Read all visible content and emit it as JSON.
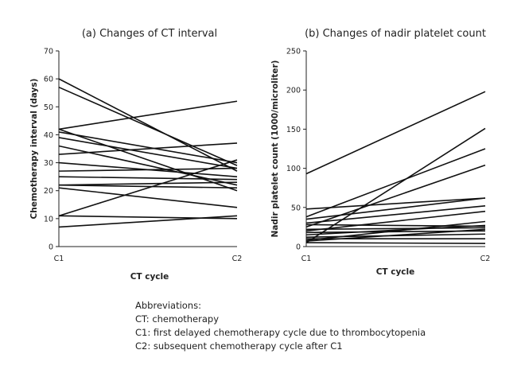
{
  "chart_data": [
    {
      "type": "line",
      "title": "(a) Changes of CT interval",
      "xlabel": "CT cycle",
      "ylabel": "Chemotherapy interval (days)",
      "categories": [
        "C1",
        "C2"
      ],
      "ylim": [
        0,
        70
      ],
      "yticks": [
        "0",
        "10",
        "20",
        "30",
        "40",
        "50",
        "60",
        "70"
      ],
      "series": [
        {
          "values": [
            60,
            27
          ]
        },
        {
          "values": [
            57,
            29
          ]
        },
        {
          "values": [
            42,
            52
          ]
        },
        {
          "values": [
            41,
            30
          ]
        },
        {
          "values": [
            42,
            20
          ]
        },
        {
          "values": [
            39,
            28
          ]
        },
        {
          "values": [
            36,
            22
          ]
        },
        {
          "values": [
            33,
            37
          ]
        },
        {
          "values": [
            30,
            25
          ]
        },
        {
          "values": [
            27,
            28
          ]
        },
        {
          "values": [
            25,
            24
          ]
        },
        {
          "values": [
            22,
            21
          ]
        },
        {
          "values": [
            22,
            23
          ]
        },
        {
          "values": [
            21,
            14
          ]
        },
        {
          "values": [
            11,
            31
          ]
        },
        {
          "values": [
            11,
            10
          ]
        },
        {
          "values": [
            7,
            11
          ]
        }
      ]
    },
    {
      "type": "line",
      "title": "(b) Changes of nadir platelet count",
      "xlabel": "CT cycle",
      "ylabel": "Nadir platelet count (1000/microliter)",
      "categories": [
        "C1",
        "C2"
      ],
      "ylim": [
        0,
        250
      ],
      "yticks": [
        "0",
        "50",
        "100",
        "150",
        "200",
        "250"
      ],
      "series": [
        {
          "values": [
            93,
            198
          ]
        },
        {
          "values": [
            5,
            151
          ]
        },
        {
          "values": [
            38,
            125
          ]
        },
        {
          "values": [
            25,
            104
          ]
        },
        {
          "values": [
            48,
            62
          ]
        },
        {
          "values": [
            35,
            62
          ]
        },
        {
          "values": [
            30,
            52
          ]
        },
        {
          "values": [
            20,
            45
          ]
        },
        {
          "values": [
            8,
            32
          ]
        },
        {
          "values": [
            15,
            27
          ]
        },
        {
          "values": [
            22,
            24
          ]
        },
        {
          "values": [
            18,
            20
          ]
        },
        {
          "values": [
            12,
            16
          ]
        },
        {
          "values": [
            7,
            22
          ]
        },
        {
          "values": [
            10,
            10
          ]
        },
        {
          "values": [
            5,
            4
          ]
        },
        {
          "values": [
            28,
            26
          ]
        }
      ]
    }
  ],
  "notes": {
    "heading": "Abbreviations:",
    "lines": [
      "CT: chemotherapy",
      "C1: first delayed chemotherapy cycle due to thrombocytopenia",
      "C2: subsequent chemotherapy cycle after C1"
    ]
  }
}
